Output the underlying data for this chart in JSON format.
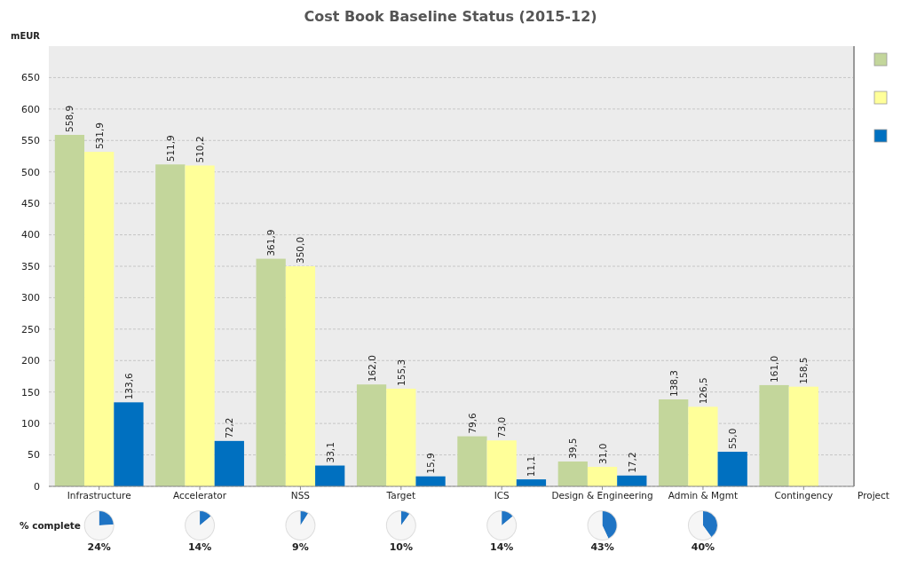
{
  "chart_data": [
    {
      "type": "bar",
      "title": "Cost Book Baseline Status  (2015-12)",
      "xlabel": "Project",
      "ylabel": "mEUR",
      "categories": [
        "Infrastructure",
        "Accelerator",
        "NSS",
        "Target",
        "ICS",
        "Design & Engineering",
        "Admin & Mgmt",
        "Contingency"
      ],
      "ylim": [
        0,
        700
      ],
      "yticks": [
        0,
        50,
        100,
        150,
        200,
        250,
        300,
        350,
        400,
        450,
        500,
        550,
        600,
        650
      ],
      "grid": "y",
      "annotations": [
        "% complete"
      ],
      "series": [
        {
          "color": "#c3d69b",
          "values": [
            558.9,
            511.9,
            361.9,
            162.0,
            79.6,
            39.5,
            138.3,
            161.0
          ],
          "value_labels": [
            "558,9",
            "511,9",
            "361,9",
            "162,0",
            "79,6",
            "39,5",
            "138,3",
            "161,0"
          ]
        },
        {
          "color": "#ffff99",
          "values": [
            531.9,
            510.2,
            350.0,
            155.3,
            73.0,
            31.0,
            126.5,
            158.5
          ],
          "value_labels": [
            "531,9",
            "510,2",
            "350,0",
            "155,3",
            "73,0",
            "31,0",
            "126,5",
            "158,5"
          ]
        },
        {
          "color": "#0070c0",
          "values": [
            133.6,
            72.2,
            33.1,
            15.9,
            11.1,
            17.2,
            55.0,
            null
          ],
          "value_labels": [
            "133,6",
            "72,2",
            "33,1",
            "15,9",
            "11,1",
            "17,2",
            "55,0",
            null
          ]
        }
      ]
    },
    {
      "type": "pie",
      "title": "24%",
      "categories": [
        null,
        null
      ],
      "values": [
        24,
        76
      ],
      "colors": [
        "#1f74c4",
        "#f6f6f6"
      ]
    },
    {
      "type": "pie",
      "title": "14%",
      "categories": [
        null,
        null
      ],
      "values": [
        14,
        86
      ],
      "colors": [
        "#1f74c4",
        "#f6f6f6"
      ]
    },
    {
      "type": "pie",
      "title": "9%",
      "categories": [
        null,
        null
      ],
      "values": [
        9,
        91
      ],
      "colors": [
        "#1f74c4",
        "#f6f6f6"
      ]
    },
    {
      "type": "pie",
      "title": "10%",
      "categories": [
        null,
        null
      ],
      "values": [
        10,
        90
      ],
      "colors": [
        "#1f74c4",
        "#f6f6f6"
      ]
    },
    {
      "type": "pie",
      "title": "14%",
      "categories": [
        null,
        null
      ],
      "values": [
        14,
        86
      ],
      "colors": [
        "#1f74c4",
        "#f6f6f6"
      ]
    },
    {
      "type": "pie",
      "title": "43%",
      "categories": [
        null,
        null
      ],
      "values": [
        43,
        57
      ],
      "colors": [
        "#1f74c4",
        "#f6f6f6"
      ]
    },
    {
      "type": "pie",
      "title": "40%",
      "categories": [
        null,
        null
      ],
      "values": [
        40,
        60
      ],
      "colors": [
        "#1f74c4",
        "#f6f6f6"
      ]
    }
  ]
}
